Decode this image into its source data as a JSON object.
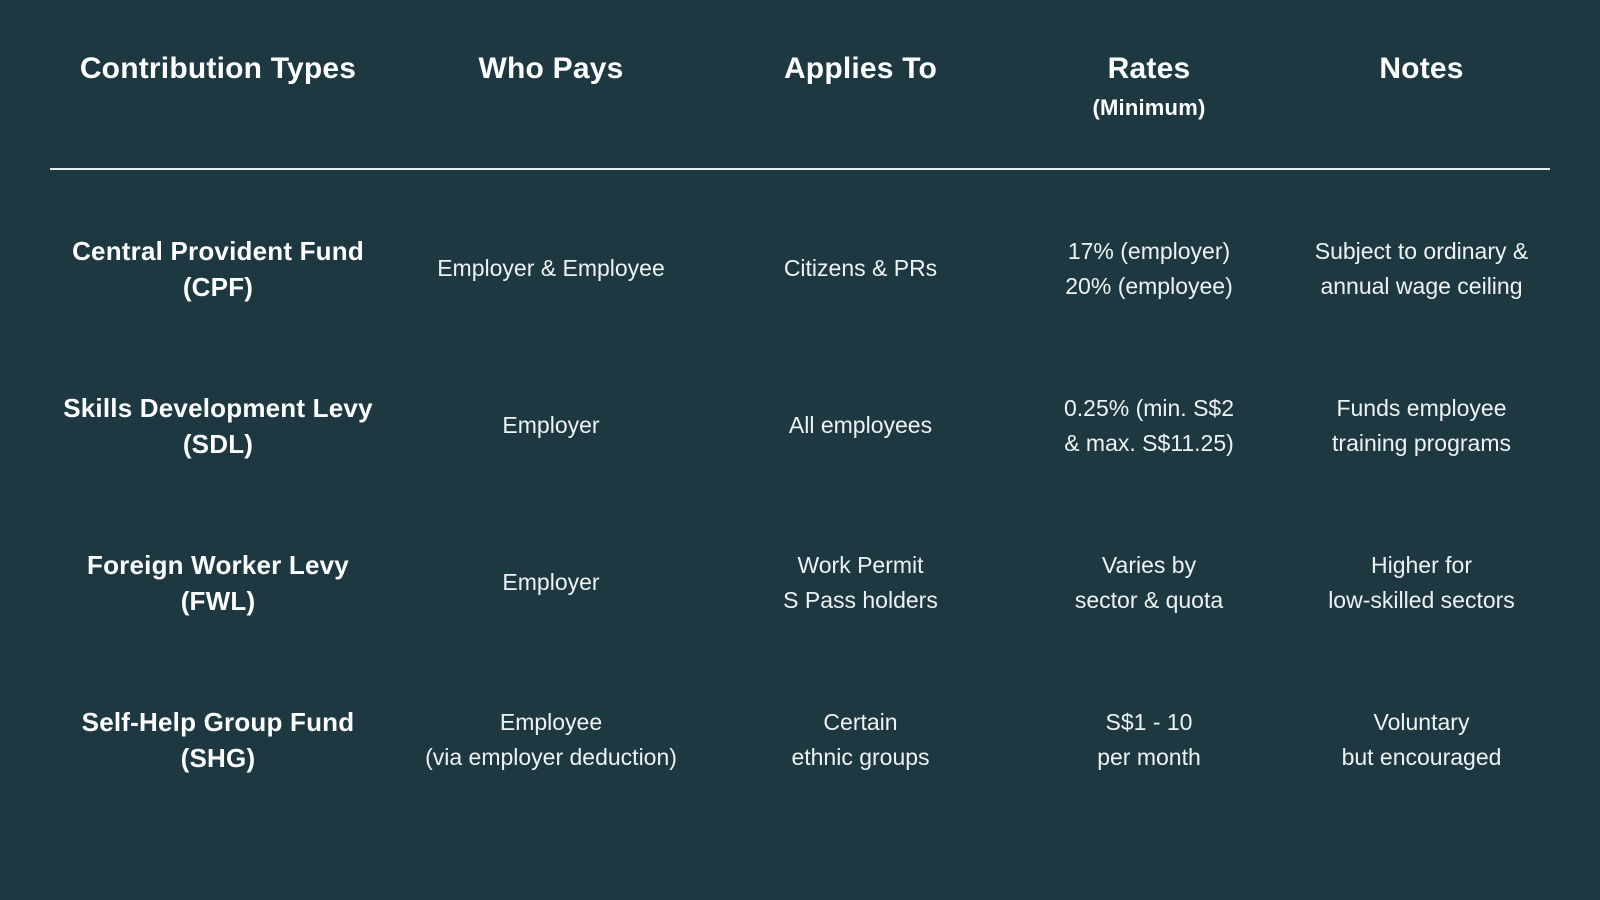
{
  "colors": {
    "background": "#1e3842",
    "header_text": "#fdfefe",
    "body_text": "#edf2f2",
    "divider": "#e8eded"
  },
  "table": {
    "headers": [
      {
        "label": "Contribution Types"
      },
      {
        "label": "Who Pays"
      },
      {
        "label": "Applies To"
      },
      {
        "label": "Rates",
        "sub": "(Minimum)"
      },
      {
        "label": "Notes"
      }
    ],
    "rows": [
      {
        "cells": [
          [
            "Central Provident Fund",
            "(CPF)"
          ],
          [
            "Employer & Employee"
          ],
          [
            "Citizens & PRs"
          ],
          [
            "17% (employer)",
            "20% (employee)"
          ],
          [
            "Subject to ordinary &",
            "annual wage ceiling"
          ]
        ]
      },
      {
        "cells": [
          [
            "Skills Development Levy",
            "(SDL)"
          ],
          [
            "Employer"
          ],
          [
            "All employees"
          ],
          [
            "0.25% (min. S$2",
            "& max. S$11.25)"
          ],
          [
            "Funds employee",
            "training programs"
          ]
        ]
      },
      {
        "cells": [
          [
            "Foreign Worker Levy",
            "(FWL)"
          ],
          [
            "Employer"
          ],
          [
            "Work Permit",
            "S Pass holders"
          ],
          [
            "Varies by",
            "sector & quota"
          ],
          [
            "Higher for",
            "low-skilled sectors"
          ]
        ]
      },
      {
        "cells": [
          [
            "Self-Help Group Fund",
            "(SHG)"
          ],
          [
            "Employee",
            "(via employer deduction)"
          ],
          [
            "Certain",
            "ethnic groups"
          ],
          [
            "S$1 - 10",
            "per month"
          ],
          [
            "Voluntary",
            "but encouraged"
          ]
        ]
      }
    ]
  }
}
